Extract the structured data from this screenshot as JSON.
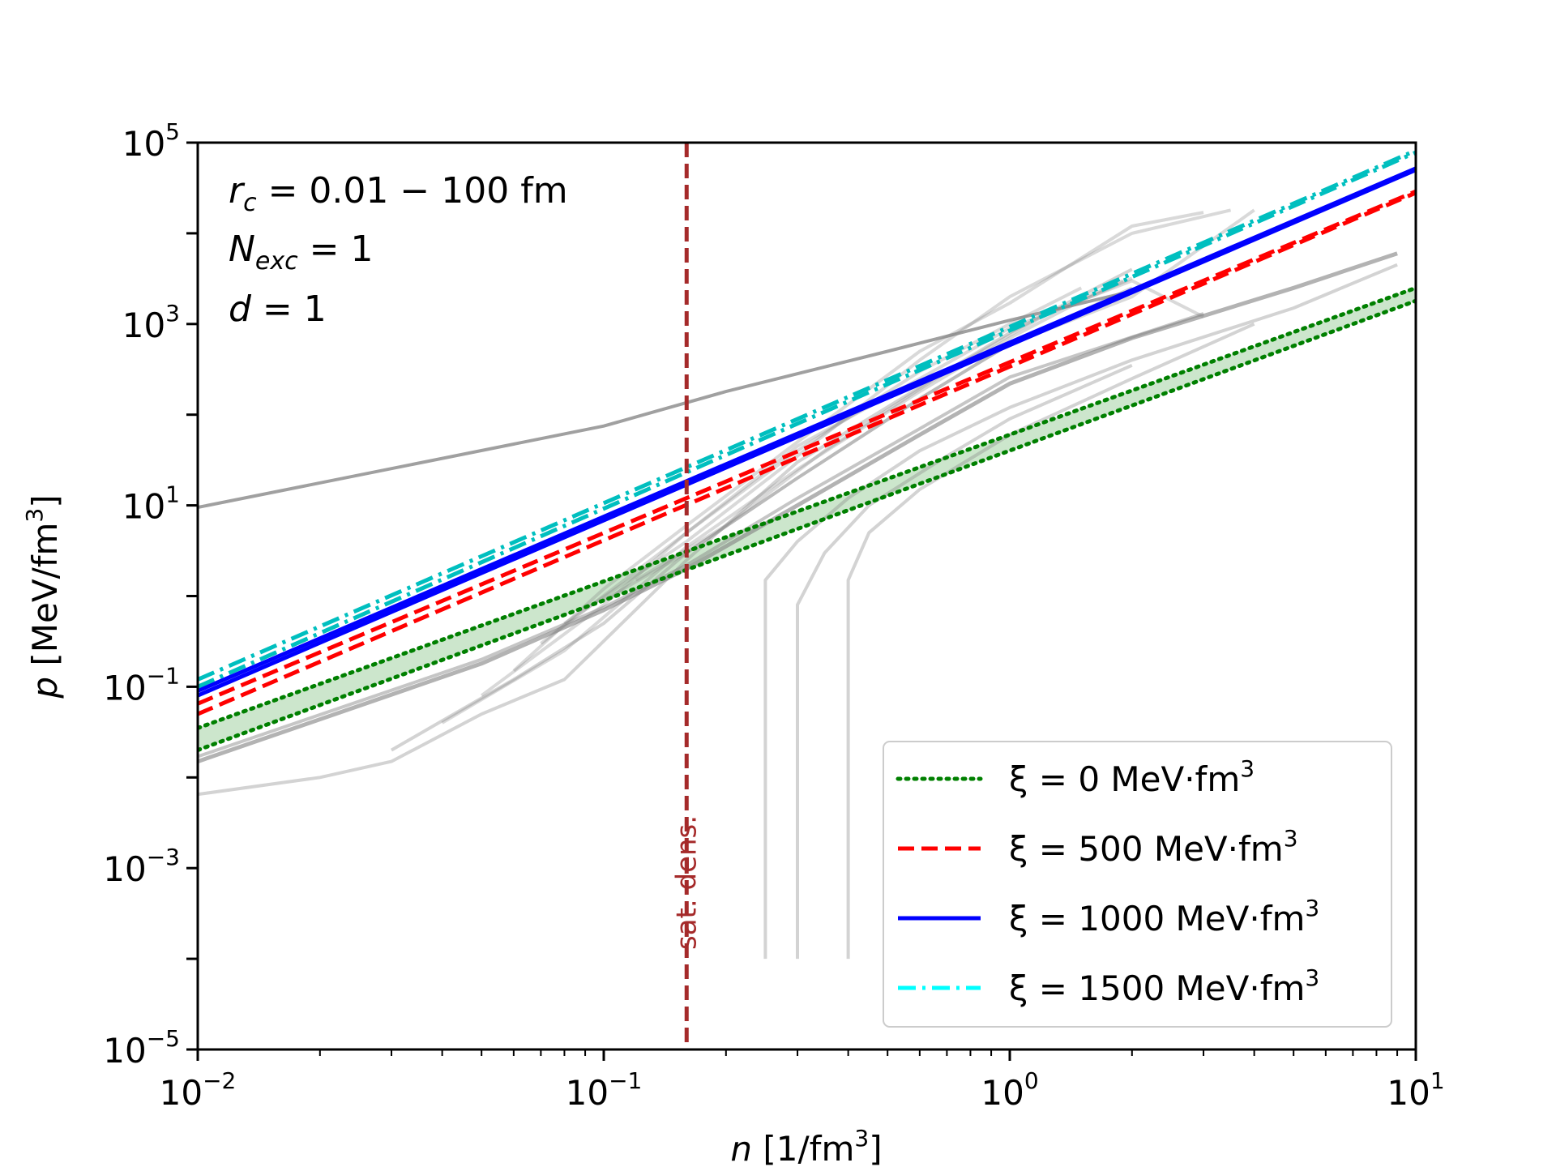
{
  "chart_data": {
    "type": "line",
    "xscale": "log",
    "yscale": "log",
    "xlim": [
      0.01,
      10
    ],
    "ylim": [
      1e-05,
      100000
    ],
    "xlabel": {
      "var": "n",
      "unit": " [1/fm",
      "sup": "3",
      "close": "]"
    },
    "ylabel": {
      "var": "p",
      "unit": " [MeV/fm",
      "sup": "3",
      "close": "]"
    },
    "x_ticks": [
      {
        "value": 0.01,
        "base": "10",
        "exp": "−2"
      },
      {
        "value": 0.1,
        "base": "10",
        "exp": "−1"
      },
      {
        "value": 1,
        "base": "10",
        "exp": "0"
      },
      {
        "value": 10,
        "base": "10",
        "exp": "1"
      }
    ],
    "y_ticks": [
      {
        "value": 1e-05,
        "base": "10",
        "exp": "−5"
      },
      {
        "value": 0.001,
        "base": "10",
        "exp": "−3"
      },
      {
        "value": 0.1,
        "base": "10",
        "exp": "−1"
      },
      {
        "value": 10,
        "base": "10",
        "exp": "1"
      },
      {
        "value": 1000,
        "base": "10",
        "exp": "3"
      },
      {
        "value": 100000,
        "base": "10",
        "exp": "5"
      }
    ],
    "annotations": [
      {
        "var": "r",
        "sub": "c",
        "text": " = 0.01 − 100 fm"
      },
      {
        "var": "N",
        "sub": "exc",
        "text": " = 1"
      },
      {
        "var": "d",
        "sub": "",
        "text": " = 1"
      }
    ],
    "saturation_line": {
      "x": 0.16,
      "label": "sat. dens.",
      "color": "#a52a2a"
    },
    "legend": {
      "position": "lower-right",
      "entries": [
        {
          "prefix": "ξ = 0 MeV·fm",
          "sup": "3",
          "color": "#008000",
          "style": "dotted"
        },
        {
          "prefix": "ξ = 500 MeV·fm",
          "sup": "3",
          "color": "#ff0000",
          "style": "dashed"
        },
        {
          "prefix": "ξ = 1000 MeV·fm",
          "sup": "3",
          "color": "#0000ff",
          "style": "solid"
        },
        {
          "prefix": "ξ = 1500 MeV·fm",
          "sup": "3",
          "color": "#00ffff",
          "style": "dashdot"
        }
      ]
    },
    "band": {
      "name": "ξ = 0 band",
      "color": "#008000",
      "lower": [
        [
          0.01,
          0.02
        ],
        [
          10,
          1800
        ]
      ],
      "upper": [
        [
          0.01,
          0.035
        ],
        [
          10,
          2500
        ]
      ]
    },
    "series": [
      {
        "name": "ξ = 0 lower",
        "color": "#008000",
        "style": "dotted",
        "points": [
          [
            0.01,
            0.02
          ],
          [
            10,
            1800
          ]
        ]
      },
      {
        "name": "ξ = 0 upper",
        "color": "#008000",
        "style": "dotted",
        "points": [
          [
            0.01,
            0.035
          ],
          [
            10,
            2500
          ]
        ]
      },
      {
        "name": "ξ = 500 lower",
        "color": "#ff0000",
        "style": "dashed",
        "points": [
          [
            0.01,
            0.05
          ],
          [
            10,
            28000
          ]
        ]
      },
      {
        "name": "ξ = 500 upper",
        "color": "#ff0000",
        "style": "dashed",
        "points": [
          [
            0.01,
            0.065
          ],
          [
            10,
            29000
          ]
        ]
      },
      {
        "name": "ξ = 1000 lower",
        "color": "#0000ff",
        "style": "solid",
        "points": [
          [
            0.01,
            0.08
          ],
          [
            10,
            50000
          ]
        ]
      },
      {
        "name": "ξ = 1000 upper",
        "color": "#0000ff",
        "style": "solid",
        "points": [
          [
            0.01,
            0.09
          ],
          [
            10,
            52000
          ]
        ]
      },
      {
        "name": "ξ = 1500 lower",
        "color": "#00bfbf",
        "style": "dashdot",
        "points": [
          [
            0.01,
            0.1
          ],
          [
            10,
            78000
          ]
        ]
      },
      {
        "name": "ξ = 1500 upper",
        "color": "#00bfbf",
        "style": "dashdot",
        "points": [
          [
            0.01,
            0.12
          ],
          [
            10,
            82000
          ]
        ]
      }
    ],
    "reference_eos": [
      {
        "points": [
          [
            0.01,
            9.5
          ],
          [
            0.1,
            75
          ],
          [
            0.2,
            180
          ],
          [
            0.5,
            500
          ],
          [
            1,
            1100
          ],
          [
            2,
            2300
          ]
        ],
        "opacity": 0.75,
        "width": 4
      },
      {
        "points": [
          [
            0.01,
            0.0065
          ],
          [
            0.02,
            0.01
          ],
          [
            0.03,
            0.015
          ],
          [
            0.05,
            0.05
          ],
          [
            0.08,
            0.12
          ],
          [
            0.16,
            2.5
          ],
          [
            0.3,
            30
          ],
          [
            0.6,
            200
          ],
          [
            1,
            800
          ],
          [
            2,
            4000
          ]
        ],
        "opacity": 0.35,
        "width": 4
      },
      {
        "points": [
          [
            0.01,
            0.015
          ],
          [
            0.05,
            0.18
          ],
          [
            0.1,
            0.7
          ],
          [
            0.16,
            2
          ],
          [
            0.3,
            10
          ],
          [
            0.6,
            60
          ],
          [
            1,
            220
          ],
          [
            2,
            700
          ],
          [
            5,
            2500
          ],
          [
            9,
            6000
          ]
        ],
        "opacity": 0.6,
        "width": 5
      },
      {
        "points": [
          [
            0.01,
            0.017
          ],
          [
            0.05,
            0.2
          ],
          [
            0.1,
            0.75
          ],
          [
            0.16,
            2.2
          ],
          [
            0.3,
            12
          ],
          [
            0.6,
            70
          ],
          [
            1,
            260
          ],
          [
            3,
            1300
          ]
        ],
        "opacity": 0.45,
        "width": 4
      },
      {
        "points": [
          [
            0.03,
            0.02
          ],
          [
            0.06,
            0.12
          ],
          [
            0.1,
            0.5
          ],
          [
            0.16,
            3
          ],
          [
            0.3,
            20
          ],
          [
            0.6,
            150
          ],
          [
            1,
            600
          ],
          [
            2,
            2500
          ]
        ],
        "opacity": 0.35,
        "width": 4
      },
      {
        "points": [
          [
            0.04,
            0.04
          ],
          [
            0.08,
            0.25
          ],
          [
            0.16,
            3.5
          ],
          [
            0.3,
            25
          ],
          [
            0.6,
            180
          ],
          [
            1,
            700
          ],
          [
            1.5,
            1800
          ],
          [
            2,
            3200
          ]
        ],
        "opacity": 0.3,
        "width": 4
      },
      {
        "points": [
          [
            0.05,
            0.08
          ],
          [
            0.1,
            0.8
          ],
          [
            0.16,
            5
          ],
          [
            0.3,
            40
          ],
          [
            0.6,
            300
          ],
          [
            1,
            1000
          ],
          [
            1.5,
            2500
          ]
        ],
        "opacity": 0.3,
        "width": 4
      },
      {
        "points": [
          [
            0.06,
            0.15
          ],
          [
            0.1,
            1.2
          ],
          [
            0.16,
            6
          ],
          [
            0.3,
            50
          ],
          [
            0.6,
            500
          ],
          [
            1,
            1700
          ],
          [
            2,
            12000
          ],
          [
            3,
            17000
          ]
        ],
        "opacity": 0.3,
        "width": 4
      },
      {
        "points": [
          [
            0.08,
            0.5
          ],
          [
            0.16,
            4
          ],
          [
            0.3,
            35
          ],
          [
            0.6,
            400
          ],
          [
            1,
            2000
          ],
          [
            2,
            10000
          ],
          [
            3.5,
            18000
          ]
        ],
        "opacity": 0.3,
        "width": 4
      },
      {
        "points": [
          [
            0.1,
            0.9
          ],
          [
            0.16,
            3
          ],
          [
            0.3,
            20
          ],
          [
            0.6,
            150
          ],
          [
            1,
            600
          ],
          [
            2,
            2000
          ],
          [
            4,
            18000
          ]
        ],
        "opacity": 0.3,
        "width": 4
      },
      {
        "points": [
          [
            0.07,
            0.3
          ],
          [
            0.16,
            5
          ],
          [
            0.3,
            45
          ],
          [
            0.6,
            250
          ],
          [
            1,
            900
          ],
          [
            2,
            3000
          ],
          [
            3,
            1200
          ]
        ],
        "opacity": 0.3,
        "width": 4
      },
      {
        "points": [
          [
            0.12,
            1.5
          ],
          [
            0.2,
            6
          ],
          [
            0.35,
            40
          ],
          [
            0.7,
            300
          ],
          [
            1.2,
            1200
          ],
          [
            1.9,
            3000
          ]
        ],
        "opacity": 0.3,
        "width": 4
      },
      {
        "points": [
          [
            0.25,
            0.0001
          ],
          [
            0.25,
            1.5
          ],
          [
            0.3,
            4
          ],
          [
            0.4,
            12
          ],
          [
            0.6,
            40
          ],
          [
            1,
            120
          ],
          [
            2,
            400
          ],
          [
            5,
            1500
          ],
          [
            9,
            4500
          ]
        ],
        "opacity": 0.35,
        "width": 4
      },
      {
        "points": [
          [
            0.3,
            0.0001
          ],
          [
            0.3,
            0.8
          ],
          [
            0.35,
            3
          ],
          [
            0.45,
            10
          ],
          [
            0.7,
            35
          ],
          [
            1,
            90
          ],
          [
            2,
            350
          ]
        ],
        "opacity": 0.35,
        "width": 4
      },
      {
        "points": [
          [
            0.4,
            0.0001
          ],
          [
            0.4,
            1.5
          ],
          [
            0.45,
            5
          ],
          [
            0.6,
            15
          ],
          [
            1,
            60
          ],
          [
            2,
            250
          ],
          [
            4,
            1000
          ]
        ],
        "opacity": 0.35,
        "width": 4
      }
    ]
  }
}
